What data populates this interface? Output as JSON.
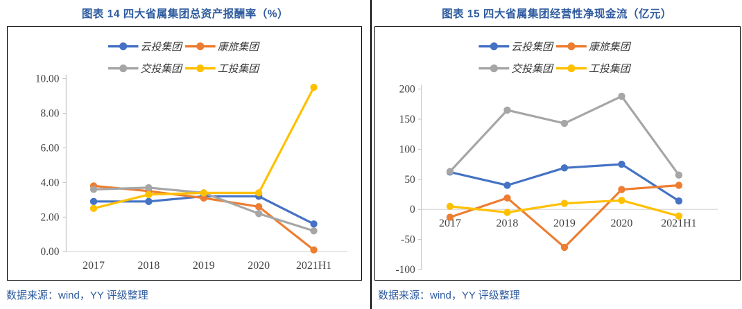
{
  "page": {
    "accent_blue": "#2E5B9E",
    "border_black": "#000000",
    "axis_gray": "#BFBFBF",
    "gridline_gray": "#D9D9D9"
  },
  "panels": [
    {
      "title": "图表 14 四大省属集团总资产报酬率（%）",
      "source": "数据来源：wind，YY 评级整理"
    },
    {
      "title": "图表 15 四大省属集团经营性净现金流（亿元）",
      "source": "数据来源：wind，YY 评级整理"
    }
  ],
  "chart_data": [
    {
      "type": "line",
      "title": "图表 14 四大省属集团总资产报酬率（%）",
      "categories": [
        "2017",
        "2018",
        "2019",
        "2020",
        "2021H1"
      ],
      "series": [
        {
          "name": "云投集团",
          "color": "#4472C4",
          "values": [
            2.9,
            2.9,
            3.2,
            3.2,
            1.6
          ]
        },
        {
          "name": "康旅集团",
          "color": "#ED7D31",
          "values": [
            3.8,
            3.5,
            3.1,
            2.6,
            0.1
          ]
        },
        {
          "name": "交投集团",
          "color": "#A6A6A6",
          "values": [
            3.6,
            3.7,
            3.4,
            2.2,
            1.2
          ]
        },
        {
          "name": "工投集团",
          "color": "#FFC000",
          "values": [
            2.5,
            3.3,
            3.4,
            3.4,
            9.5
          ]
        }
      ],
      "xlabel": "",
      "ylabel": "",
      "ylim": [
        0,
        10
      ],
      "ytick_step": 2,
      "ytick_format": "2dp",
      "grid": false,
      "legend_position": "top"
    },
    {
      "type": "line",
      "title": "图表 15 四大省属集团经营性净现金流（亿元）",
      "categories": [
        "2017",
        "2018",
        "2019",
        "2020",
        "2021H1"
      ],
      "series": [
        {
          "name": "云投集团",
          "color": "#4472C4",
          "values": [
            62,
            40,
            69,
            75,
            14
          ]
        },
        {
          "name": "康旅集团",
          "color": "#ED7D31",
          "values": [
            -13,
            19,
            -63,
            33,
            40
          ]
        },
        {
          "name": "交投集团",
          "color": "#A6A6A6",
          "values": [
            63,
            165,
            143,
            188,
            57
          ]
        },
        {
          "name": "工投集团",
          "color": "#FFC000",
          "values": [
            5,
            -5,
            10,
            15,
            -11
          ]
        }
      ],
      "xlabel": "",
      "ylabel": "",
      "ylim": [
        -100,
        200
      ],
      "ytick_step": 50,
      "ytick_format": "int",
      "grid": false,
      "legend_position": "top"
    }
  ]
}
